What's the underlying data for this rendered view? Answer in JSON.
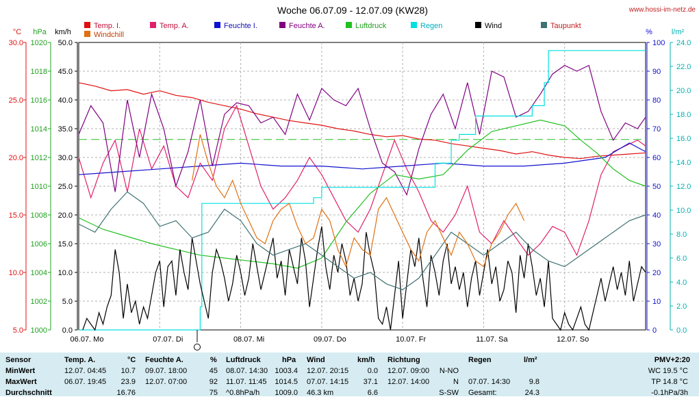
{
  "title": "Woche 06.07.09 - 12.07.09 (KW28)",
  "site": "www.hossi-im-netz.de",
  "colors": {
    "temp_in": "#e01010",
    "temp_out": "#e0206a",
    "hum_in": "#1010d0",
    "hum_out": "#800080",
    "pressure": "#20c020",
    "rain": "#00e0e0",
    "wind": "#000000",
    "dewpoint": "#407070",
    "windchill": "#e07010",
    "stats_bg": "#d6ecf2"
  },
  "chart_data": {
    "type": "line",
    "title": "Woche 06.07.09 - 12.07.09 (KW28)",
    "legend": [
      {
        "name": "Temp. I.",
        "color": "#e01010"
      },
      {
        "name": "Temp. A.",
        "color": "#e0206a"
      },
      {
        "name": "Feuchte I.",
        "color": "#1010d0"
      },
      {
        "name": "Feuchte A.",
        "color": "#800080"
      },
      {
        "name": "Luftdruck",
        "color": "#20c020"
      },
      {
        "name": "Regen",
        "color": "#00e0e0"
      },
      {
        "name": "Wind",
        "color": "#000000"
      },
      {
        "name": "Taupunkt",
        "color": "#407070"
      },
      {
        "name": "Windchill",
        "color": "#e07010"
      }
    ],
    "axis_units": {
      "temp": "°C",
      "pressure": "hPa",
      "wind": "km/h",
      "humidity": "%",
      "rain": "l/m²"
    },
    "axes": {
      "temp": {
        "min": 5,
        "max": 30,
        "ticks": [
          "5.0",
          "10.0",
          "15.0",
          "20.0",
          "25.0",
          "30.0"
        ],
        "color": "#e01010"
      },
      "pressure": {
        "min": 1000,
        "max": 1020,
        "ticks": [
          "1000",
          "1002",
          "1004",
          "1006",
          "1008",
          "1010",
          "1012",
          "1014",
          "1016",
          "1018",
          "1020"
        ],
        "color": "#20a020"
      },
      "wind": {
        "min": 0,
        "max": 50,
        "ticks": [
          "0.0",
          "5.0",
          "10.0",
          "15.0",
          "20.0",
          "25.0",
          "30.0",
          "35.0",
          "40.0",
          "45.0",
          "50.0"
        ],
        "color": "#000000"
      },
      "humidity": {
        "min": 0,
        "max": 100,
        "ticks": [
          "0",
          "10",
          "20",
          "30",
          "40",
          "50",
          "60",
          "70",
          "80",
          "90",
          "100"
        ],
        "color": "#1010d0"
      },
      "rain": {
        "min": 0,
        "max": 25,
        "ticks": [
          "0.0",
          "2.0",
          "4.0",
          "6.0",
          "8.0",
          "10.0",
          "12.0",
          "14.0",
          "16.0",
          "18.0",
          "20.0",
          "22.0",
          "24.0"
        ],
        "color": "#00b0b0"
      }
    },
    "x_range": [
      0,
      7
    ],
    "x_labels": [
      "06.07. Mo",
      "07.07. Di",
      "08.07. Mi",
      "09.07. Do",
      "10.07. Fr",
      "11.07. Sa",
      "12.07. So"
    ],
    "reference_line": {
      "axis": "pressure",
      "value": 1013.25,
      "color": "#20c020"
    },
    "grid": true,
    "series": [
      {
        "name": "Temp. I.",
        "axis": "temp",
        "x": [
          0,
          0.2,
          0.4,
          0.6,
          0.8,
          1.0,
          1.2,
          1.4,
          1.6,
          1.8,
          2.0,
          2.2,
          2.4,
          2.6,
          2.8,
          3.0,
          3.2,
          3.4,
          3.6,
          3.8,
          4.0,
          4.2,
          4.4,
          4.6,
          4.8,
          5.0,
          5.2,
          5.4,
          5.6,
          5.8,
          6.0,
          6.2,
          6.4,
          6.6,
          6.8,
          7.0
        ],
        "y": [
          26.5,
          26.2,
          25.8,
          25.9,
          25.5,
          25.8,
          25.4,
          25.2,
          24.8,
          24.5,
          24.2,
          23.8,
          23.5,
          23.2,
          23.0,
          22.8,
          22.5,
          22.3,
          22.0,
          21.8,
          21.9,
          21.6,
          21.5,
          21.2,
          21.0,
          20.8,
          20.6,
          20.3,
          20.5,
          20.2,
          20.0,
          19.9,
          20.1,
          20.2,
          20.3,
          20.4
        ]
      },
      {
        "name": "Temp. A.",
        "axis": "temp",
        "x": [
          0,
          0.15,
          0.3,
          0.45,
          0.6,
          0.75,
          0.9,
          1.05,
          1.2,
          1.35,
          1.5,
          1.65,
          1.8,
          1.95,
          2.1,
          2.25,
          2.4,
          2.55,
          2.7,
          2.85,
          3.0,
          3.15,
          3.3,
          3.45,
          3.6,
          3.75,
          3.9,
          4.05,
          4.2,
          4.35,
          4.5,
          4.65,
          4.8,
          4.95,
          5.1,
          5.25,
          5.4,
          5.55,
          5.7,
          5.85,
          6.0,
          6.15,
          6.3,
          6.45,
          6.6,
          6.75,
          6.9,
          7.0
        ],
        "y": [
          20.0,
          16.5,
          19.5,
          21.5,
          17.0,
          22.5,
          19.0,
          21.0,
          17.5,
          16.5,
          19.5,
          18.0,
          22.5,
          24.5,
          21.0,
          17.5,
          15.5,
          16.5,
          18.0,
          20.0,
          18.5,
          16.5,
          14.5,
          13.5,
          15.5,
          18.5,
          21.5,
          19.0,
          17.0,
          14.5,
          13.5,
          15.0,
          17.5,
          13.5,
          12.5,
          14.5,
          13.0,
          11.5,
          12.5,
          14.0,
          13.5,
          11.5,
          14.5,
          18.5,
          20.5,
          21.0,
          21.5,
          21.0
        ]
      },
      {
        "name": "Feuchte I.",
        "axis": "humidity",
        "x": [
          0,
          0.5,
          1.0,
          1.5,
          2.0,
          2.5,
          3.0,
          3.5,
          4.0,
          4.5,
          5.0,
          5.5,
          6.0,
          6.5,
          6.8,
          7.0
        ],
        "y": [
          54,
          55,
          56,
          57,
          58,
          57,
          57,
          56,
          57,
          58,
          57,
          57,
          58,
          60,
          65,
          62
        ]
      },
      {
        "name": "Feuchte A.",
        "axis": "humidity",
        "x": [
          0,
          0.15,
          0.3,
          0.45,
          0.6,
          0.75,
          0.9,
          1.05,
          1.2,
          1.35,
          1.5,
          1.65,
          1.8,
          1.95,
          2.1,
          2.25,
          2.4,
          2.55,
          2.7,
          2.85,
          3.0,
          3.15,
          3.3,
          3.45,
          3.6,
          3.75,
          3.9,
          4.05,
          4.2,
          4.35,
          4.5,
          4.65,
          4.8,
          4.95,
          5.1,
          5.25,
          5.4,
          5.55,
          5.7,
          5.85,
          6.0,
          6.15,
          6.3,
          6.45,
          6.6,
          6.75,
          6.9,
          7.0
        ],
        "y": [
          68,
          78,
          72,
          48,
          80,
          60,
          82,
          70,
          50,
          62,
          80,
          57,
          75,
          79,
          78,
          72,
          74,
          68,
          82,
          73,
          84,
          80,
          78,
          84,
          70,
          58,
          55,
          47,
          63,
          75,
          82,
          70,
          86,
          68,
          90,
          88,
          74,
          76,
          82,
          89,
          92,
          90,
          92,
          76,
          66,
          72,
          70,
          74
        ]
      },
      {
        "name": "Luftdruck",
        "axis": "pressure",
        "x": [
          0,
          0.3,
          0.6,
          0.9,
          1.2,
          1.5,
          1.8,
          2.1,
          2.4,
          2.7,
          3.0,
          3.3,
          3.6,
          3.9,
          4.2,
          4.5,
          4.8,
          5.1,
          5.4,
          5.7,
          6.0,
          6.2,
          6.4,
          6.6,
          6.8,
          7.0
        ],
        "y": [
          1007.8,
          1007.0,
          1006.5,
          1006.0,
          1005.6,
          1005.2,
          1005.0,
          1004.8,
          1004.6,
          1004.3,
          1005.0,
          1007.5,
          1009.5,
          1010.8,
          1010.5,
          1010.8,
          1012.5,
          1013.8,
          1014.2,
          1014.6,
          1014.2,
          1013.2,
          1012.3,
          1011.2,
          1010.4,
          1010.0
        ]
      },
      {
        "name": "Regen",
        "axis": "rain",
        "step": true,
        "x": [
          0,
          0.55,
          1.5,
          1.52,
          2.45,
          2.9,
          3.0,
          3.9,
          4.4,
          4.6,
          4.7,
          4.9,
          5.3,
          5.5,
          5.6,
          5.75,
          5.8,
          7.0
        ],
        "y": [
          0,
          0,
          2.0,
          11.0,
          11.0,
          11.5,
          12.4,
          12.4,
          14.5,
          16.5,
          17.0,
          18.6,
          18.6,
          18.6,
          19.5,
          21.5,
          24.3,
          24.3
        ]
      },
      {
        "name": "Wind",
        "axis": "wind",
        "x": [
          0.05,
          0.1,
          0.15,
          0.2,
          0.25,
          0.3,
          0.35,
          0.4,
          0.45,
          0.5,
          0.55,
          0.6,
          0.65,
          0.7,
          0.75,
          0.8,
          0.85,
          0.9,
          0.95,
          1.0,
          1.05,
          1.1,
          1.15,
          1.2,
          1.25,
          1.3,
          1.35,
          1.4,
          1.45,
          1.5,
          1.55,
          1.6,
          1.65,
          1.7,
          1.75,
          1.8,
          1.85,
          1.9,
          1.95,
          2.0,
          2.05,
          2.1,
          2.15,
          2.2,
          2.25,
          2.3,
          2.35,
          2.4,
          2.45,
          2.5,
          2.55,
          2.6,
          2.65,
          2.7,
          2.75,
          2.8,
          2.85,
          2.9,
          2.95,
          3.0,
          3.05,
          3.1,
          3.15,
          3.2,
          3.25,
          3.3,
          3.35,
          3.4,
          3.45,
          3.5,
          3.55,
          3.6,
          3.65,
          3.7,
          3.75,
          3.8,
          3.85,
          3.9,
          3.95,
          4.0,
          4.05,
          4.1,
          4.15,
          4.2,
          4.25,
          4.3,
          4.35,
          4.4,
          4.45,
          4.5,
          4.55,
          4.6,
          4.65,
          4.7,
          4.75,
          4.8,
          4.85,
          4.9,
          4.95,
          5.0,
          5.05,
          5.1,
          5.15,
          5.2,
          5.25,
          5.3,
          5.35,
          5.4,
          5.45,
          5.5,
          5.55,
          5.6,
          5.65,
          5.7,
          5.75,
          5.8,
          5.85,
          5.9,
          5.95,
          6.0,
          6.05,
          6.1,
          6.15,
          6.2,
          6.25,
          6.3,
          6.35,
          6.4,
          6.45,
          6.5,
          6.55,
          6.6,
          6.65,
          6.7,
          6.75,
          6.8,
          6.85,
          6.9,
          6.95,
          7.0
        ],
        "y": [
          0,
          2,
          1,
          0,
          3,
          1,
          4,
          6,
          14,
          10,
          2,
          8,
          3,
          5,
          1,
          4,
          2,
          6,
          10,
          12,
          4,
          11,
          12,
          6,
          14,
          10,
          7,
          16,
          12,
          8,
          5,
          2,
          10,
          14,
          12,
          9,
          5,
          8,
          13,
          10,
          6,
          9,
          15,
          11,
          7,
          10,
          13,
          16,
          9,
          12,
          6,
          14,
          11,
          8,
          16,
          12,
          4,
          9,
          14,
          18,
          11,
          7,
          13,
          10,
          15,
          12,
          6,
          9,
          5,
          8,
          17,
          13,
          10,
          2,
          1,
          4,
          0,
          6,
          12,
          2,
          8,
          14,
          11,
          16,
          9,
          4,
          13,
          10,
          6,
          12,
          15,
          8,
          11,
          7,
          10,
          4,
          9,
          12,
          6,
          10,
          14,
          8,
          11,
          5,
          7,
          12,
          10,
          3,
          13,
          9,
          15,
          11,
          6,
          9,
          4,
          12,
          2,
          1,
          0,
          3,
          1,
          0,
          2,
          4,
          1,
          0,
          3,
          6,
          9,
          5,
          8,
          11,
          7,
          10,
          6,
          12,
          5,
          8,
          11,
          10
        ]
      },
      {
        "name": "Taupunkt",
        "axis": "temp",
        "x": [
          0,
          0.2,
          0.4,
          0.6,
          0.8,
          1.0,
          1.2,
          1.4,
          1.6,
          1.8,
          2.0,
          2.2,
          2.4,
          2.6,
          2.8,
          3.0,
          3.2,
          3.4,
          3.6,
          3.8,
          4.0,
          4.2,
          4.4,
          4.6,
          4.8,
          5.0,
          5.2,
          5.4,
          5.6,
          5.8,
          6.0,
          6.2,
          6.4,
          6.6,
          6.8,
          7.0
        ],
        "y": [
          14.2,
          13.5,
          15.5,
          17.0,
          16.0,
          14.0,
          14.5,
          13.0,
          13.5,
          15.5,
          14.5,
          12.5,
          11.5,
          12.0,
          12.5,
          11.5,
          10.5,
          9.5,
          10.0,
          9.0,
          8.5,
          9.5,
          11.5,
          13.5,
          12.5,
          11.5,
          12.5,
          13.5,
          12.0,
          11.0,
          10.5,
          11.5,
          12.5,
          13.5,
          14.5,
          15.0
        ]
      },
      {
        "name": "Windchill",
        "axis": "temp",
        "x": [
          1.4,
          1.5,
          1.6,
          1.7,
          1.8,
          1.9,
          2.0,
          2.1,
          2.2,
          2.3,
          2.4,
          2.5,
          2.6,
          2.7,
          2.8,
          2.9,
          3.0,
          3.1,
          3.2,
          3.3,
          3.4,
          3.5,
          3.6,
          3.7,
          3.8,
          3.9,
          4.0,
          4.1,
          4.2,
          4.3,
          4.4,
          4.5,
          4.6,
          4.7,
          4.8,
          4.9,
          5.0,
          5.1,
          5.2,
          5.3,
          5.4,
          5.5
        ],
        "y": [
          18.0,
          22.0,
          19.5,
          17.5,
          16.5,
          18.0,
          16.0,
          14.5,
          13.0,
          12.5,
          14.5,
          15.5,
          16.0,
          14.0,
          12.5,
          13.0,
          15.5,
          14.5,
          12.0,
          10.5,
          13.0,
          12.0,
          11.5,
          15.5,
          16.5,
          15.0,
          13.5,
          12.0,
          11.0,
          13.5,
          14.5,
          13.0,
          11.5,
          13.5,
          12.5,
          11.0,
          10.5,
          12.5,
          13.5,
          15.0,
          16.0,
          14.5
        ]
      }
    ]
  },
  "stats": {
    "col_sensor": {
      "header": "Sensor",
      "rows": [
        "MinWert",
        "MaxWert",
        "Durchschnitt"
      ]
    },
    "col_temp": {
      "header": "Temp. A.",
      "unit": "°C",
      "rows": [
        [
          "12.07.  04:45",
          "10.7"
        ],
        [
          "06.07.  19:45",
          "23.9"
        ],
        [
          "",
          "16.76"
        ]
      ]
    },
    "col_hum": {
      "header": "Feuchte A.",
      "unit": "%",
      "rows": [
        [
          "09.07.  18:00",
          "45"
        ],
        [
          "12.07.  07:00",
          "92"
        ],
        [
          "",
          "75"
        ]
      ]
    },
    "col_press": {
      "header": "Luftdruck",
      "unit": "hPa",
      "rows": [
        [
          "08.07.  14:30",
          "1003.4"
        ],
        [
          "11.07.  11:45",
          "1014.5"
        ],
        [
          "^0.8hPa/h",
          "1009.0"
        ]
      ]
    },
    "col_wind": {
      "header": "Wind",
      "unit": "km/h",
      "rows": [
        [
          "12.07.  20:15",
          "0.0"
        ],
        [
          "07.07.  14:15",
          "37.1"
        ],
        [
          "46.3 km",
          "6.6"
        ]
      ]
    },
    "col_dir": {
      "header": "Richtung",
      "rows": [
        [
          "12.07.  09:00",
          "N-NO"
        ],
        [
          "12.07.  14:00",
          "N"
        ],
        [
          "",
          "S-SW"
        ]
      ]
    },
    "col_rain": {
      "header": "Regen",
      "unit": "l/m²",
      "rows": [
        [
          "",
          ""
        ],
        [
          "07.07.  14:30",
          "9.8"
        ],
        [
          "Gesamt:",
          "24.3"
        ]
      ]
    },
    "col_pmv": {
      "header": "PMV+2:20",
      "rows": [
        "WC 19.5 °C",
        "TP 14.8 °C",
        "-0.1hPa/3h"
      ]
    }
  }
}
